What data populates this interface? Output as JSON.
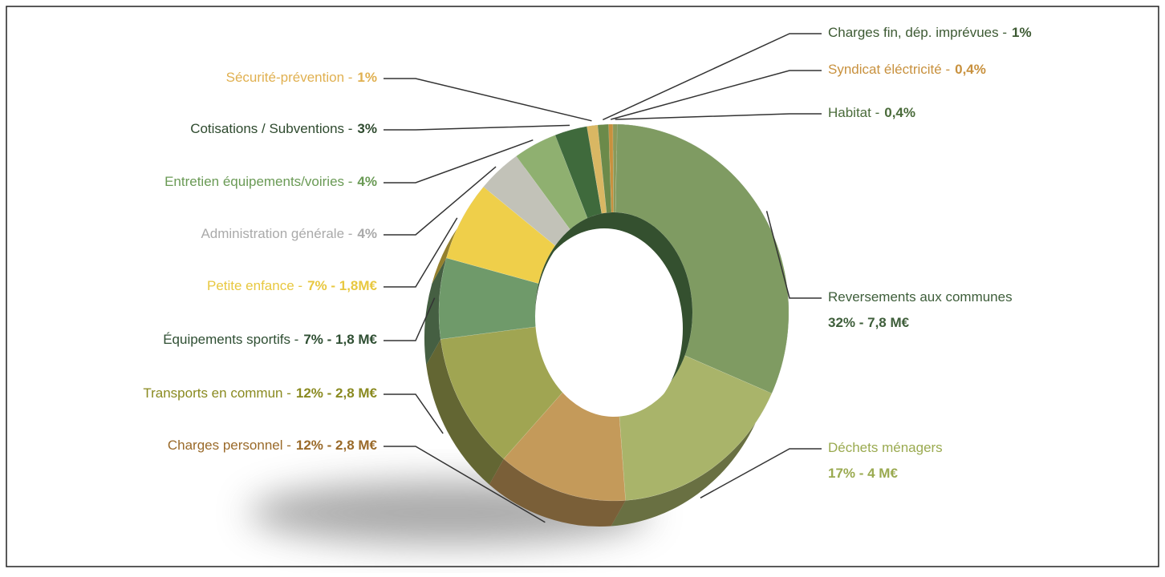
{
  "chart_data": {
    "type": "pie",
    "categories": [
      "Reversements aux communes",
      "Déchets ménagers",
      "Charges personnel -",
      "Transports en commun -",
      "Équipements sportifs -",
      "Petite enfance -",
      "Administration générale -",
      "Entretien équipements/voiries -",
      "Cotisations / Subventions -",
      "Sécurité-prévention -",
      "Charges fin, dép. imprévues -",
      "Syndicat éléctricité -",
      "Habitat -"
    ],
    "values": [
      32,
      17,
      12,
      12,
      7,
      7,
      4,
      4,
      3,
      1,
      1,
      0.4,
      0.4
    ],
    "value_labels": [
      "32% - 7,8 M€",
      "17% - 4 M€",
      "12% - 2,8 M€",
      "12% - 2,8 M€",
      "7% - 1,8 M€",
      "7% - 1,8M€",
      "4%",
      "4%",
      "3%",
      "1%",
      "1%",
      "0,4%",
      "0,4%"
    ],
    "colors": [
      "#7f9b62",
      "#a9b46a",
      "#c49a5a",
      "#a0a552",
      "#6f9a6a",
      "#efcf4a",
      "#c2c2b8",
      "#8fb070",
      "#3f6a3c",
      "#d9b763",
      "#6b8a4a",
      "#c8913e",
      "#8a9a5a"
    ],
    "label_colors": [
      "#3e5e3a",
      "#9aaa50",
      "#9a6a2a",
      "#8a8a20",
      "#2f4f33",
      "#e8c840",
      "#aaaaaa",
      "#6a9a55",
      "#2e4a2e",
      "#e0b050",
      "#3d5a33",
      "#c8913e",
      "#4a6b3a"
    ]
  }
}
